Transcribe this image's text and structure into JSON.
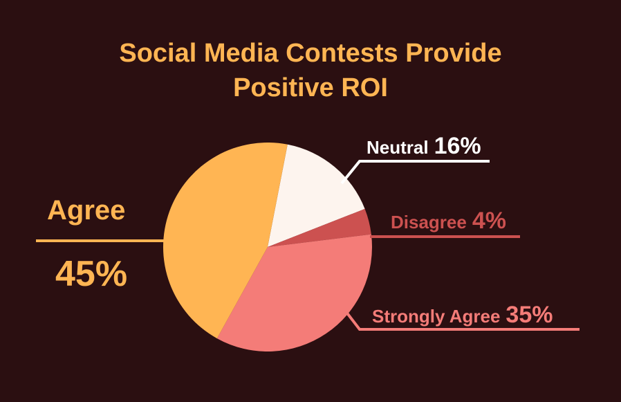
{
  "chart_data": {
    "type": "pie",
    "title": "Social Media Contests Provide Positive ROI",
    "title_lines": [
      "Social Media Contests Provide",
      "Positive ROI"
    ],
    "slices": [
      {
        "label": "Neutral",
        "value": 16,
        "display": "16%",
        "color": "#fdf4ee"
      },
      {
        "label": "Disagree",
        "value": 4,
        "display": "4%",
        "color": "#cc5150"
      },
      {
        "label": "Strongly Agree",
        "value": 35,
        "display": "35%",
        "color": "#f47c78"
      },
      {
        "label": "Agree",
        "value": 45,
        "display": "45%",
        "color": "#ffb553"
      }
    ],
    "legend": "none"
  },
  "colors": {
    "background": "#2b0f11",
    "title": "#ffb553"
  }
}
